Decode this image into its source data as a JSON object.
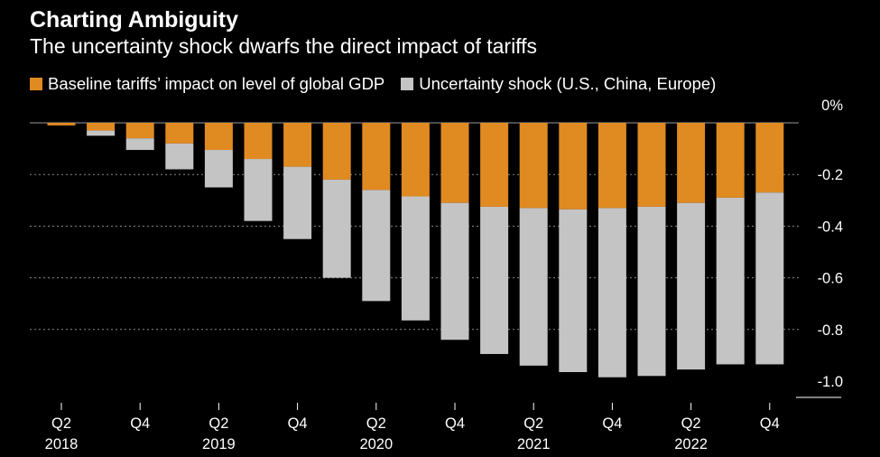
{
  "chart_data": {
    "type": "bar",
    "stacked": true,
    "title": "Charting Ambiguity",
    "subtitle": "The uncertainty shock dwarfs the direct impact of tariffs",
    "categories": [
      "Q2 2018",
      "Q3 2018",
      "Q4 2018",
      "Q1 2019",
      "Q2 2019",
      "Q3 2019",
      "Q4 2019",
      "Q1 2020",
      "Q2 2020",
      "Q3 2020",
      "Q4 2020",
      "Q1 2021",
      "Q2 2021",
      "Q3 2021",
      "Q4 2021",
      "Q1 2022",
      "Q2 2022",
      "Q3 2022",
      "Q4 2022"
    ],
    "x_tick_labels": [
      {
        "index": 0,
        "quarter": "Q2",
        "year": "2018"
      },
      {
        "index": 2,
        "quarter": "Q4",
        "year": ""
      },
      {
        "index": 4,
        "quarter": "Q2",
        "year": "2019"
      },
      {
        "index": 6,
        "quarter": "Q4",
        "year": ""
      },
      {
        "index": 8,
        "quarter": "Q2",
        "year": "2020"
      },
      {
        "index": 10,
        "quarter": "Q4",
        "year": ""
      },
      {
        "index": 12,
        "quarter": "Q2",
        "year": "2021"
      },
      {
        "index": 14,
        "quarter": "Q4",
        "year": ""
      },
      {
        "index": 16,
        "quarter": "Q2",
        "year": "2022"
      },
      {
        "index": 18,
        "quarter": "Q4",
        "year": ""
      }
    ],
    "series": [
      {
        "name": "Baseline tariffs’ impact on level of global GDP",
        "color": "#e08a22",
        "values": [
          -0.01,
          -0.03,
          -0.06,
          -0.08,
          -0.105,
          -0.14,
          -0.17,
          -0.22,
          -0.26,
          -0.285,
          -0.31,
          -0.325,
          -0.33,
          -0.335,
          -0.33,
          -0.325,
          -0.31,
          -0.29,
          -0.27
        ]
      },
      {
        "name": "Uncertainty shock (U.S., China, Europe)",
        "color": "#c4c4c4",
        "values": [
          0,
          -0.02,
          -0.045,
          -0.1,
          -0.145,
          -0.24,
          -0.28,
          -0.38,
          -0.43,
          -0.48,
          -0.53,
          -0.57,
          -0.61,
          -0.63,
          -0.655,
          -0.655,
          -0.645,
          -0.645,
          -0.665
        ]
      }
    ],
    "y_ticks": [
      {
        "value": 0,
        "label": "0%"
      },
      {
        "value": -0.2,
        "label": "-0.2"
      },
      {
        "value": -0.4,
        "label": "-0.4"
      },
      {
        "value": -0.6,
        "label": "-0.6"
      },
      {
        "value": -0.8,
        "label": "-0.8"
      },
      {
        "value": -1.0,
        "label": "-1.0"
      }
    ],
    "ylim": [
      -1.0,
      0
    ],
    "grid": true,
    "legend_position": "top-left"
  }
}
